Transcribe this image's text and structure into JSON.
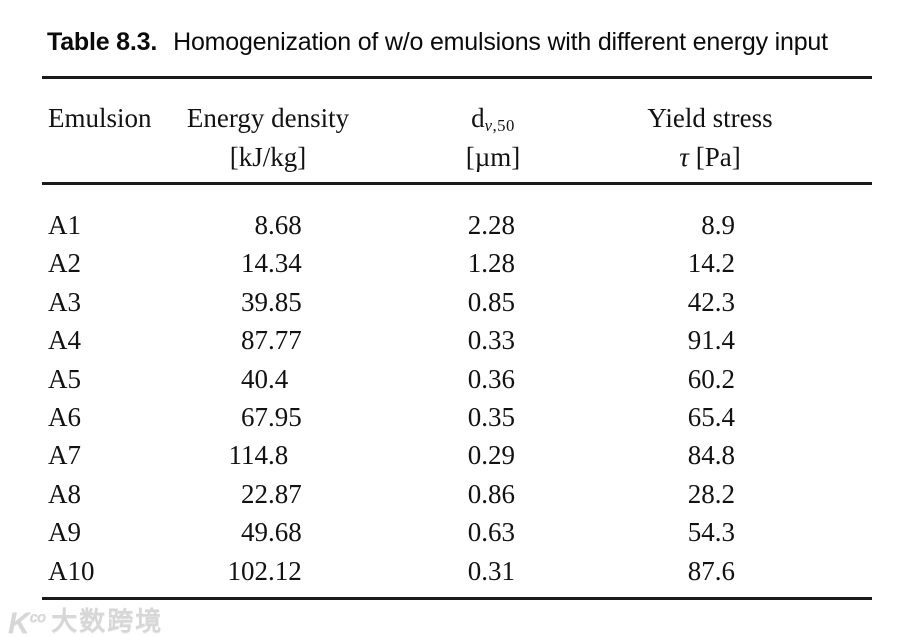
{
  "title": {
    "label": "Table 8.3.",
    "text": "Homogenization of w/o emulsions with different energy input"
  },
  "header": {
    "col1": "Emulsion",
    "col2_line1": "Energy density",
    "col2_line2": "[kJ/kg]",
    "col3_base": "d",
    "col3_sub_italic": "v",
    "col3_sub_rest": ",50",
    "col3_line2": "[µm]",
    "col4_line1": "Yield stress",
    "col4_tau": "τ",
    "col4_unit": "[Pa]"
  },
  "rows": [
    {
      "emulsion": "A1",
      "energy_density": "8.68",
      "dv50": "2.28",
      "yield_stress": "8.9"
    },
    {
      "emulsion": "A2",
      "energy_density": "14.34",
      "dv50": "1.28",
      "yield_stress": "14.2"
    },
    {
      "emulsion": "A3",
      "energy_density": "39.85",
      "dv50": "0.85",
      "yield_stress": "42.3"
    },
    {
      "emulsion": "A4",
      "energy_density": "87.77",
      "dv50": "0.33",
      "yield_stress": "91.4"
    },
    {
      "emulsion": "A5",
      "energy_density": "40.4",
      "dv50": "0.36",
      "yield_stress": "60.2"
    },
    {
      "emulsion": "A6",
      "energy_density": "67.95",
      "dv50": "0.35",
      "yield_stress": "65.4"
    },
    {
      "emulsion": "A7",
      "energy_density": "114.8",
      "dv50": "0.29",
      "yield_stress": "84.8"
    },
    {
      "emulsion": "A8",
      "energy_density": "22.87",
      "dv50": "0.86",
      "yield_stress": "28.2"
    },
    {
      "emulsion": "A9",
      "energy_density": "49.68",
      "dv50": "0.63",
      "yield_stress": "54.3"
    },
    {
      "emulsion": "A10",
      "energy_density": "102.12",
      "dv50": "0.31",
      "yield_stress": "87.6"
    }
  ],
  "watermark": {
    "logo_main": "K",
    "logo_sup": "co",
    "text": "大数跨境"
  },
  "colors": {
    "text": "#121212",
    "rule": "#1a1a1a",
    "watermark": "#d7d7d7",
    "background": "#ffffff"
  }
}
